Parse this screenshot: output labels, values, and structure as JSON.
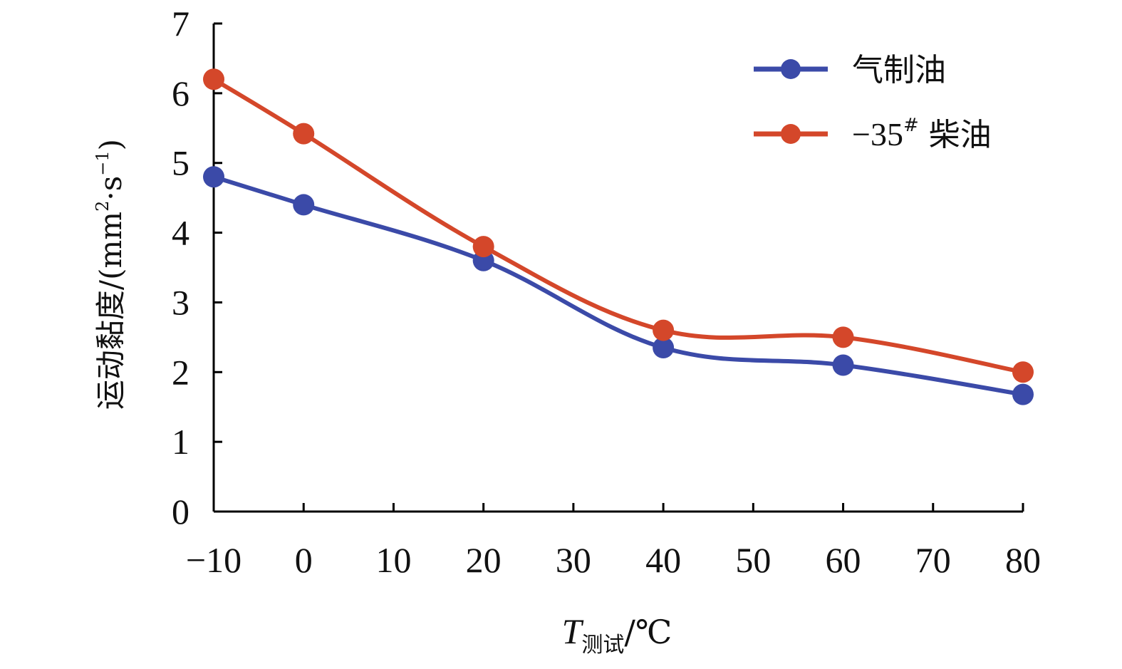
{
  "chart_data": {
    "type": "line",
    "xlabel": {
      "main": "T",
      "subscript": "测试",
      "unit": "/℃"
    },
    "ylabel": {
      "main": "运动黏度/(mm",
      "sup1": "2",
      "mid": "·s",
      "sup2": "−1",
      "end": ")"
    },
    "xlim": [
      -10,
      80
    ],
    "ylim": [
      0,
      7
    ],
    "xticks": [
      "−10",
      "0",
      "10",
      "20",
      "30",
      "40",
      "50",
      "60",
      "70",
      "80"
    ],
    "yticks": [
      "0",
      "1",
      "2",
      "3",
      "4",
      "5",
      "6",
      "7"
    ],
    "x": [
      -10,
      0,
      20,
      40,
      60,
      80
    ],
    "series": [
      {
        "name": "气制油",
        "color": "#3b4aa8",
        "values": [
          4.8,
          4.4,
          3.6,
          2.35,
          2.1,
          1.68
        ]
      },
      {
        "name_prefix": "−35",
        "name_sup": "#",
        "name_suffix": " 柴油",
        "color": "#d4472a",
        "values": [
          6.2,
          5.42,
          3.8,
          2.6,
          2.5,
          2.0
        ]
      }
    ],
    "legend_position": "top-right",
    "grid": false
  }
}
